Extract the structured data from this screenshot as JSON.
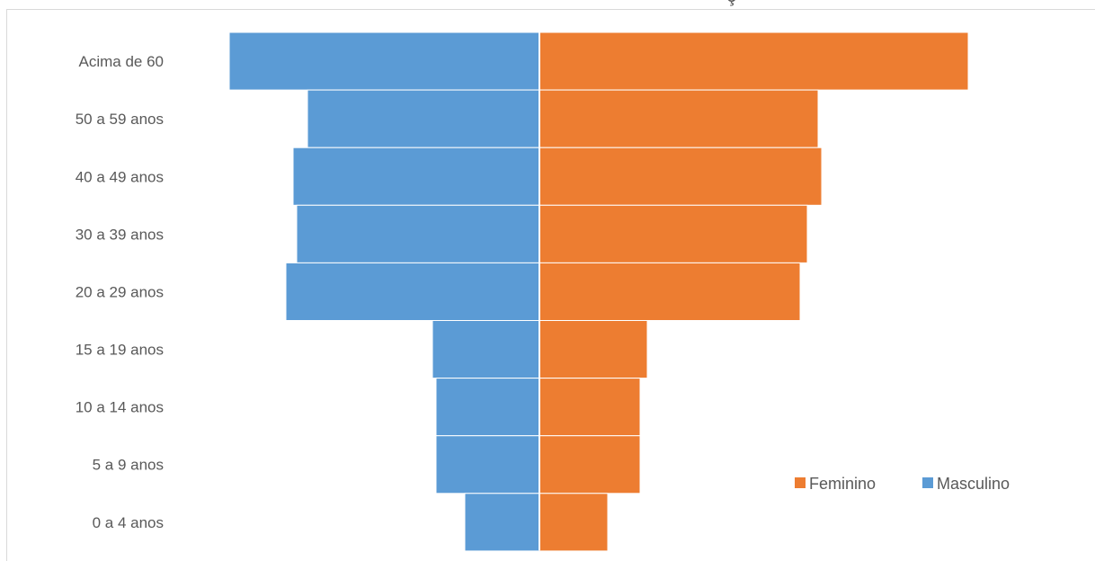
{
  "chart_data": {
    "type": "bar",
    "orientation": "horizontal",
    "layout": "population-pyramid",
    "title_fragment": "ç",
    "categories": [
      "Acima de 60",
      "50 a 59 anos",
      "40 a 49 anos",
      "30 a 39 anos",
      "20 a 29 anos",
      "15 a 19 anos",
      "10 a 14 anos",
      "5 a 9 anos",
      "0 a 4 anos"
    ],
    "series": [
      {
        "name": "Masculino",
        "color": "#5b9bd5",
        "side": "left",
        "values": [
          345,
          258,
          274,
          270,
          282,
          119,
          115,
          115,
          83
        ]
      },
      {
        "name": "Feminino",
        "color": "#ed7d31",
        "side": "right",
        "values": [
          477,
          310,
          314,
          298,
          290,
          120,
          112,
          112,
          76
        ]
      }
    ],
    "legend": {
      "position": "bottom-right",
      "items": [
        "Feminino",
        "Masculino"
      ]
    },
    "grid": false
  }
}
